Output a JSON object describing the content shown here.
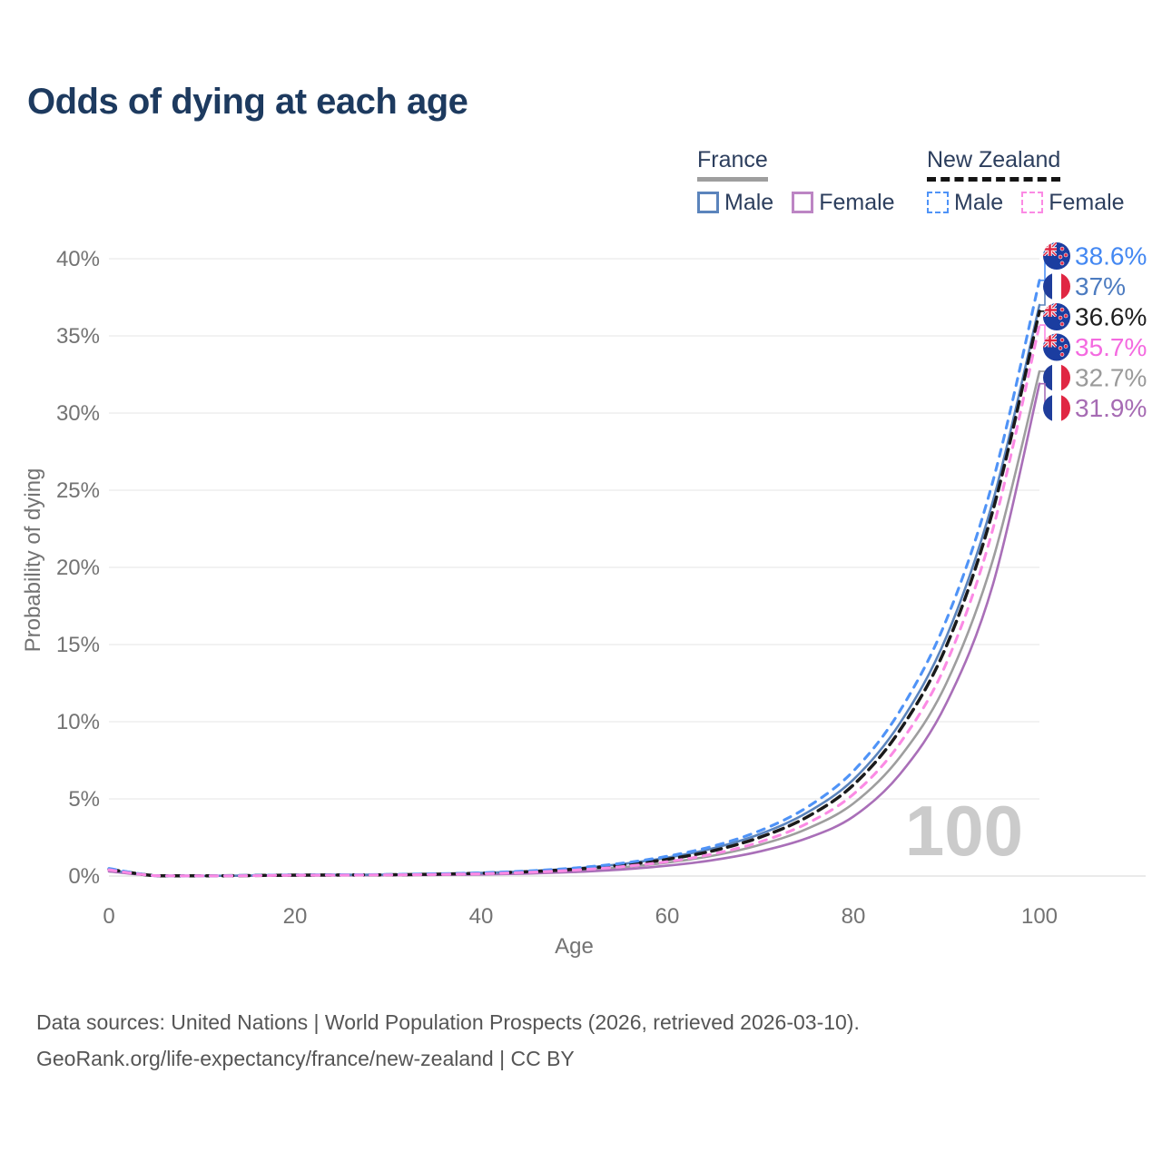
{
  "title": "Odds of dying at each age",
  "legend": {
    "groups": [
      {
        "id": "france",
        "label": "France",
        "line_style": "solid",
        "header_color": "#9e9e9e",
        "items": [
          {
            "id": "france-male",
            "label": "Male",
            "color": "#5b84bc"
          },
          {
            "id": "france-female",
            "label": "Female",
            "color": "#bc85c4"
          }
        ]
      },
      {
        "id": "new-zealand",
        "label": "New Zealand",
        "line_style": "dashed",
        "header_color": "#141414",
        "items": [
          {
            "id": "new-zealand-male",
            "label": "Male",
            "color": "#4f93f7"
          },
          {
            "id": "new-zealand-female",
            "label": "Female",
            "color": "#fb8ae4"
          }
        ]
      }
    ]
  },
  "chart_data": {
    "type": "line",
    "title": "Odds of dying at each age",
    "xlabel": "Age",
    "ylabel": "Probability of dying",
    "xlim": [
      0,
      100
    ],
    "ylim_percent": [
      0,
      40
    ],
    "xticks": [
      0,
      20,
      40,
      60,
      80,
      100
    ],
    "yticks": [
      "0%",
      "5%",
      "10%",
      "15%",
      "20%",
      "25%",
      "30%",
      "35%",
      "40%"
    ],
    "grid": true,
    "watermark": "100",
    "x": [
      0,
      5,
      10,
      15,
      20,
      25,
      30,
      35,
      40,
      45,
      50,
      55,
      60,
      65,
      70,
      75,
      80,
      85,
      90,
      95,
      100
    ],
    "series": [
      {
        "id": "new-zealand-male",
        "name": "New Zealand Male",
        "flag": "nz",
        "style": "dashed",
        "color": "#4f93f7",
        "label_color": "#4488f2",
        "end_label": "38.6%",
        "end_value": 38.6,
        "values": [
          0.49,
          0.02,
          0.01,
          0.04,
          0.07,
          0.08,
          0.1,
          0.14,
          0.21,
          0.33,
          0.52,
          0.82,
          1.28,
          1.95,
          2.95,
          4.45,
          6.8,
          10.7,
          16.6,
          25.6,
          38.6
        ]
      },
      {
        "id": "france-male",
        "name": "France Male",
        "flag": "fr",
        "style": "solid",
        "color": "#5b84bc",
        "label_color": "#4c7bc0",
        "end_label": "37%",
        "end_value": 37.0,
        "values": [
          0.4,
          0.02,
          0.01,
          0.03,
          0.06,
          0.08,
          0.09,
          0.13,
          0.2,
          0.31,
          0.49,
          0.77,
          1.19,
          1.81,
          2.73,
          4.1,
          6.25,
          9.9,
          15.5,
          24.3,
          37.0
        ]
      },
      {
        "id": "new-zealand-total",
        "name": "New Zealand",
        "flag": "nz",
        "style": "dashed",
        "color": "#1a1a1a",
        "label_color": "#1f1f1f",
        "end_label": "36.6%",
        "end_value": 36.6,
        "values": [
          0.44,
          0.02,
          0.01,
          0.03,
          0.06,
          0.07,
          0.08,
          0.12,
          0.18,
          0.28,
          0.44,
          0.7,
          1.08,
          1.65,
          2.52,
          3.82,
          5.9,
          9.45,
          14.9,
          23.7,
          36.6
        ]
      },
      {
        "id": "new-zealand-female",
        "name": "New Zealand Female",
        "flag": "nz",
        "style": "dashed",
        "color": "#fb8ae4",
        "label_color": "#f46ae0",
        "end_label": "35.7%",
        "end_value": 35.7,
        "values": [
          0.4,
          0.02,
          0.01,
          0.02,
          0.05,
          0.06,
          0.07,
          0.1,
          0.15,
          0.24,
          0.38,
          0.6,
          0.93,
          1.44,
          2.22,
          3.4,
          5.3,
          8.6,
          13.8,
          22.5,
          35.7
        ]
      },
      {
        "id": "france-total",
        "name": "France",
        "flag": "fr",
        "style": "solid",
        "color": "#9e9e9e",
        "label_color": "#9a9a9a",
        "end_label": "32.7%",
        "end_value": 32.7,
        "values": [
          0.35,
          0.02,
          0.01,
          0.02,
          0.04,
          0.05,
          0.07,
          0.09,
          0.14,
          0.22,
          0.36,
          0.56,
          0.87,
          1.33,
          2.03,
          3.05,
          4.7,
          7.7,
          12.5,
          20.5,
          32.7
        ]
      },
      {
        "id": "france-female",
        "name": "France Female",
        "flag": "fr",
        "style": "solid",
        "color": "#a96fb8",
        "label_color": "#a66bb3",
        "end_label": "31.9%",
        "end_value": 31.9,
        "values": [
          0.3,
          0.01,
          0.01,
          0.02,
          0.03,
          0.04,
          0.05,
          0.07,
          0.1,
          0.16,
          0.26,
          0.42,
          0.67,
          1.04,
          1.6,
          2.45,
          3.85,
          6.6,
          11.2,
          18.9,
          31.9
        ]
      }
    ],
    "flag_colors": {
      "nz_blue": "#1b3da0",
      "fr_blue": "#1f3d9b",
      "red": "#e02743",
      "white": "#ffffff"
    }
  },
  "footer": {
    "line1": "Data sources: United Nations | World Population Prospects (2026, retrieved 2026-03-10).",
    "line2": "GeoRank.org/life-expectancy/france/new-zealand | CC BY"
  }
}
